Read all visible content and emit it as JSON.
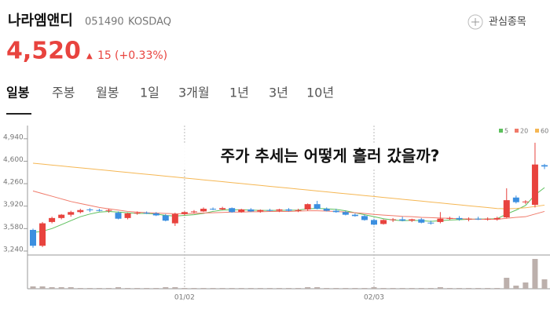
{
  "header": {
    "name": "나라엠앤디",
    "code": "051490",
    "market": "KOSDAQ",
    "watch": "관심종목",
    "price": "4,520",
    "change": "15",
    "change_pct": "(+0.33%)"
  },
  "tabs": [
    "일봉",
    "주봉",
    "월봉",
    "1일",
    "3개월",
    "1년",
    "3년",
    "10년"
  ],
  "chart_data": {
    "type": "candlestick",
    "title": "주가 추세는 어떻게 흘러 갔을까?",
    "categories": [
      null,
      null,
      null,
      null,
      null,
      null,
      null,
      null,
      null,
      null,
      null,
      null,
      null,
      null,
      null,
      null,
      "01/02",
      null,
      null,
      null,
      null,
      null,
      null,
      null,
      null,
      null,
      null,
      null,
      null,
      null,
      null,
      null,
      null,
      null,
      null,
      null,
      "02/03",
      null,
      null,
      null,
      null,
      null,
      null,
      null,
      null,
      null,
      null,
      null,
      null,
      null,
      null,
      null,
      null,
      null,
      null
    ],
    "open": [
      3560,
      3320,
      3680,
      3740,
      3790,
      3830,
      3870,
      3860,
      3850,
      3820,
      3740,
      3810,
      3820,
      3810,
      3780,
      3660,
      3800,
      3830,
      3840,
      3880,
      3870,
      3890,
      3830,
      3870,
      3840,
      3860,
      3850,
      3870,
      3850,
      3870,
      3950,
      3880,
      3850,
      3830,
      3790,
      3770,
      3710,
      3650,
      3710,
      3720,
      3700,
      3720,
      3670,
      3680,
      3730,
      3740,
      3720,
      3730,
      3720,
      3720,
      3750,
      4050,
      3980,
      3940,
      4540
    ],
    "high": [
      3580,
      3680,
      3760,
      3800,
      3850,
      3880,
      3890,
      3880,
      3880,
      3840,
      3820,
      3840,
      3840,
      3830,
      3800,
      3820,
      3840,
      3860,
      3900,
      3900,
      3910,
      3900,
      3880,
      3890,
      3870,
      3880,
      3880,
      3890,
      3880,
      3960,
      4000,
      3900,
      3880,
      3850,
      3810,
      3790,
      3730,
      3720,
      3740,
      3760,
      3730,
      3740,
      3700,
      3830,
      3760,
      3770,
      3750,
      3760,
      3750,
      3760,
      4190,
      4080,
      4010,
      4880,
      4560
    ],
    "low": [
      3290,
      3300,
      3660,
      3720,
      3760,
      3810,
      3830,
      3840,
      3820,
      3720,
      3720,
      3790,
      3800,
      3770,
      3690,
      3620,
      3780,
      3810,
      3830,
      3860,
      3860,
      3820,
      3820,
      3830,
      3820,
      3840,
      3830,
      3840,
      3830,
      3850,
      3870,
      3840,
      3820,
      3780,
      3760,
      3700,
      3630,
      3640,
      3680,
      3690,
      3680,
      3660,
      3640,
      3660,
      3710,
      3700,
      3690,
      3710,
      3700,
      3700,
      3740,
      3960,
      3950,
      3900,
      4480
    ],
    "close": [
      3320,
      3660,
      3740,
      3790,
      3830,
      3860,
      3860,
      3850,
      3860,
      3730,
      3810,
      3820,
      3810,
      3780,
      3700,
      3800,
      3830,
      3840,
      3880,
      3870,
      3890,
      3830,
      3870,
      3840,
      3860,
      3850,
      3870,
      3850,
      3860,
      3950,
      3880,
      3850,
      3830,
      3790,
      3770,
      3710,
      3640,
      3710,
      3720,
      3700,
      3720,
      3670,
      3660,
      3730,
      3740,
      3720,
      3730,
      3720,
      3730,
      3740,
      4010,
      3980,
      3990,
      4550,
      4520
    ],
    "up_color": "#e8433e",
    "down_color": "#3b8fe0",
    "moving_averages": [
      {
        "name": "5",
        "color": "#5cc05c",
        "values": [
          3520,
          3540,
          3580,
          3640,
          3700,
          3760,
          3800,
          3830,
          3840,
          3830,
          3820,
          3810,
          3810,
          3800,
          3780,
          3770,
          3780,
          3790,
          3810,
          3840,
          3860,
          3865,
          3865,
          3860,
          3855,
          3855,
          3855,
          3858,
          3860,
          3880,
          3885,
          3880,
          3870,
          3850,
          3820,
          3790,
          3760,
          3730,
          3710,
          3700,
          3705,
          3700,
          3690,
          3700,
          3710,
          3715,
          3720,
          3725,
          3725,
          3730,
          3800,
          3860,
          3930,
          4090,
          4200
        ]
      },
      {
        "name": "20",
        "color": "#f07a6a",
        "values": [
          4150,
          4110,
          4070,
          4030,
          3990,
          3960,
          3930,
          3900,
          3880,
          3860,
          3840,
          3830,
          3820,
          3815,
          3810,
          3805,
          3805,
          3810,
          3815,
          3820,
          3825,
          3830,
          3830,
          3835,
          3835,
          3840,
          3840,
          3840,
          3845,
          3850,
          3850,
          3845,
          3840,
          3830,
          3820,
          3810,
          3795,
          3785,
          3775,
          3765,
          3760,
          3750,
          3745,
          3740,
          3735,
          3730,
          3725,
          3720,
          3720,
          3720,
          3735,
          3750,
          3760,
          3800,
          3840
        ]
      },
      {
        "name": "60",
        "color": "#f5b754",
        "values": [
          4570,
          4556,
          4542,
          4528,
          4514,
          4500,
          4486,
          4472,
          4458,
          4444,
          4430,
          4416,
          4402,
          4388,
          4374,
          4360,
          4346,
          4332,
          4318,
          4304,
          4290,
          4276,
          4262,
          4248,
          4234,
          4220,
          4206,
          4192,
          4178,
          4164,
          4150,
          4136,
          4122,
          4108,
          4094,
          4080,
          4066,
          4052,
          4038,
          4024,
          4010,
          3996,
          3982,
          3968,
          3954,
          3940,
          3926,
          3912,
          3898,
          3884,
          3880,
          3885,
          3895,
          3915,
          3935
        ]
      }
    ],
    "volume": [
      3,
      3,
      2,
      2,
      2,
      1,
      1,
      1,
      1,
      2,
      1,
      1,
      1,
      1,
      2,
      2,
      1,
      1,
      1,
      1,
      1,
      1,
      1,
      1,
      1,
      1,
      1,
      1,
      1,
      2,
      2,
      1,
      1,
      1,
      1,
      1,
      2,
      1,
      1,
      1,
      1,
      1,
      1,
      2,
      1,
      1,
      1,
      1,
      1,
      1,
      14,
      4,
      8,
      38,
      12
    ],
    "volume_color": "#bcb0ac",
    "volume_lim": [
      0,
      40
    ],
    "ylim": [
      3180,
      5140
    ],
    "yticks": [
      {
        "value": 3240,
        "label": "3,240"
      },
      {
        "value": 3580,
        "label": "3,580"
      },
      {
        "value": 3920,
        "label": "3,920"
      },
      {
        "value": 4260,
        "label": "4,260"
      },
      {
        "value": 4600,
        "label": "4,600"
      },
      {
        "value": 4940,
        "label": "4,940"
      }
    ]
  }
}
